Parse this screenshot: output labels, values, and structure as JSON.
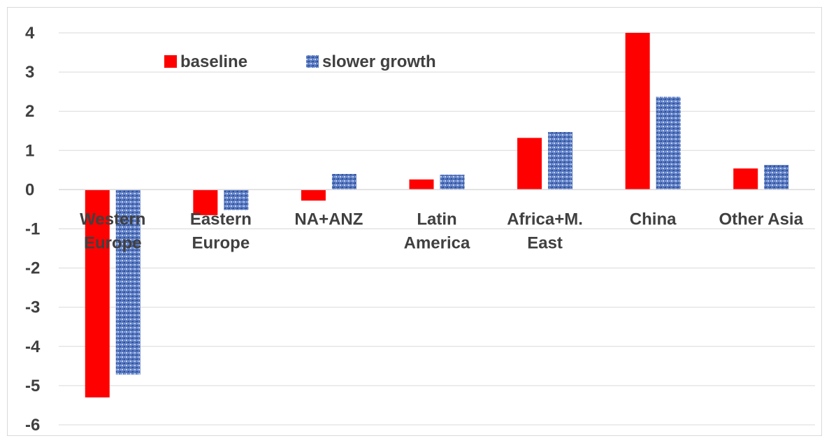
{
  "chart_data": {
    "type": "bar",
    "categories": [
      [
        "Western",
        "Europe"
      ],
      [
        "Eastern",
        "Europe"
      ],
      [
        "NA+ANZ"
      ],
      [
        "Latin",
        "America"
      ],
      [
        "Africa+M.",
        "East"
      ],
      [
        "China"
      ],
      [
        "Other Asia"
      ]
    ],
    "series": [
      {
        "name": "baseline",
        "color": "#ff0000",
        "pattern": "solid",
        "values": [
          -5.3,
          -0.65,
          -0.28,
          0.26,
          1.32,
          4.0,
          0.54
        ]
      },
      {
        "name": "slower growth",
        "color": "#4f6fb8",
        "pattern": "textured",
        "values": [
          -4.72,
          -0.52,
          0.4,
          0.38,
          1.47,
          2.37,
          0.63
        ]
      }
    ],
    "title": "",
    "xlabel": "",
    "ylabel": "",
    "ylim": [
      -6,
      4
    ],
    "yticks": [
      4,
      3,
      2,
      1,
      0,
      -1,
      -2,
      -3,
      -4,
      -5,
      -6
    ],
    "grid": "horizontal",
    "legend_position": "top-left"
  }
}
